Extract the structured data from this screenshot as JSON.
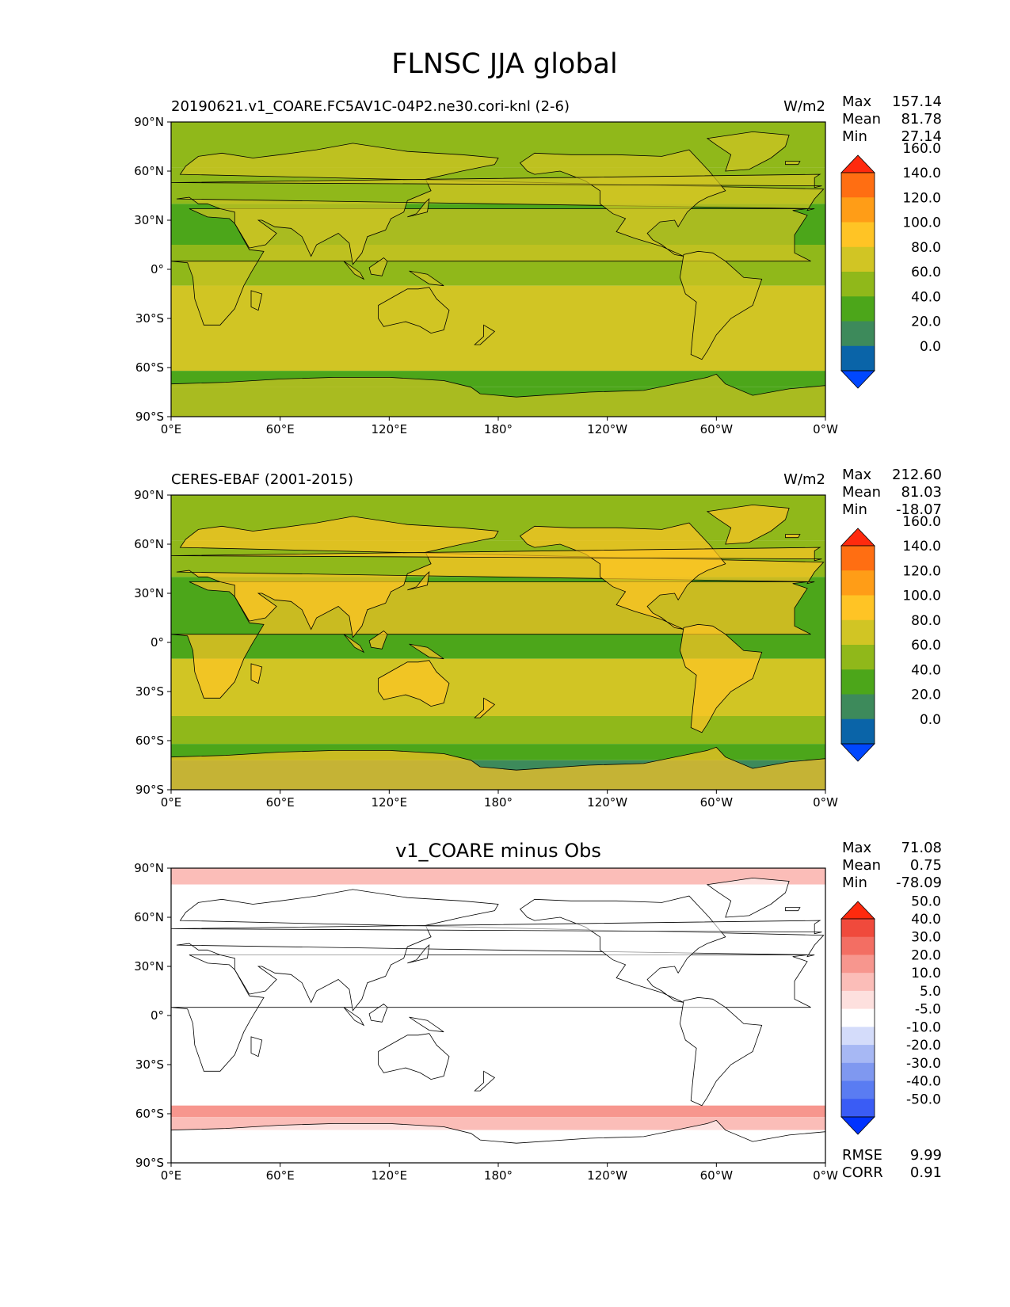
{
  "figure": {
    "title": "FLNSC JJA global",
    "colors": {
      "land": "#ffffff",
      "coast": "#000000"
    }
  },
  "panels": [
    {
      "id": "test",
      "left_title": "20190621.v1_COARE.FC5AV1C-04P2.ne30.cori-knl (2-6)",
      "center_title": "",
      "units": "W/m2",
      "stats": [
        {
          "label": "Max",
          "value": "157.14"
        },
        {
          "label": "Mean",
          "value": "81.78"
        },
        {
          "label": "Min",
          "value": "27.14"
        }
      ],
      "extra_stats": []
    },
    {
      "id": "reference",
      "left_title": "CERES-EBAF (2001-2015)",
      "center_title": "",
      "units": "W/m2",
      "stats": [
        {
          "label": "Max",
          "value": "212.60"
        },
        {
          "label": "Mean",
          "value": "81.03"
        },
        {
          "label": "Min",
          "value": "-18.07"
        }
      ],
      "extra_stats": []
    },
    {
      "id": "diff",
      "left_title": "",
      "center_title": "v1_COARE minus Obs",
      "units": "",
      "stats": [
        {
          "label": "Max",
          "value": "71.08"
        },
        {
          "label": "Mean",
          "value": "0.75"
        },
        {
          "label": "Min",
          "value": "-78.09"
        }
      ],
      "extra_stats": [
        {
          "label": "RMSE",
          "value": "9.99"
        },
        {
          "label": "CORR",
          "value": "0.91"
        }
      ]
    }
  ],
  "chart_data": [
    {
      "type": "heatmap",
      "title": "20190621.v1_COARE.FC5AV1C-04P2.ne30.cori-knl (2-6)",
      "units": "W/m2",
      "x_ticks": [
        "0°E",
        "60°E",
        "120°E",
        "180°",
        "120°W",
        "60°W",
        "0°W"
      ],
      "y_ticks": [
        "90°N",
        "60°N",
        "30°N",
        "0°",
        "30°S",
        "60°S",
        "90°S"
      ],
      "lon_range": [
        0,
        360
      ],
      "lat_range": [
        -90,
        90
      ],
      "colorbar": {
        "levels": [
          "0.0",
          "20.0",
          "40.0",
          "60.0",
          "80.0",
          "100.0",
          "120.0",
          "140.0",
          "160.0"
        ],
        "colors": [
          "#0047ff",
          "#0a64a8",
          "#3d8a5b",
          "#4ca61a",
          "#90b81a",
          "#d1c524",
          "#ffc425",
          "#ff9d17",
          "#ff6e12",
          "#ff2a0e"
        ],
        "extend": "both"
      },
      "stats": {
        "max": 157.14,
        "mean": 81.78,
        "min": 27.14
      }
    },
    {
      "type": "heatmap",
      "title": "CERES-EBAF (2001-2015)",
      "units": "W/m2",
      "x_ticks": [
        "0°E",
        "60°E",
        "120°E",
        "180°",
        "120°W",
        "60°W",
        "0°W"
      ],
      "y_ticks": [
        "90°N",
        "60°N",
        "30°N",
        "0°",
        "30°S",
        "60°S",
        "90°S"
      ],
      "lon_range": [
        0,
        360
      ],
      "lat_range": [
        -90,
        90
      ],
      "colorbar": {
        "levels": [
          "0.0",
          "20.0",
          "40.0",
          "60.0",
          "80.0",
          "100.0",
          "120.0",
          "140.0",
          "160.0"
        ],
        "colors": [
          "#0047ff",
          "#0a64a8",
          "#3d8a5b",
          "#4ca61a",
          "#90b81a",
          "#d1c524",
          "#ffc425",
          "#ff9d17",
          "#ff6e12",
          "#ff2a0e"
        ],
        "extend": "both"
      },
      "stats": {
        "max": 212.6,
        "mean": 81.03,
        "min": -18.07
      }
    },
    {
      "type": "heatmap",
      "title": "v1_COARE minus Obs",
      "x_ticks": [
        "0°E",
        "60°E",
        "120°E",
        "180°",
        "120°W",
        "60°W",
        "0°W"
      ],
      "y_ticks": [
        "90°N",
        "60°N",
        "30°N",
        "0°",
        "30°S",
        "60°S",
        "90°S"
      ],
      "lon_range": [
        0,
        360
      ],
      "lat_range": [
        -90,
        90
      ],
      "colorbar": {
        "levels": [
          "-50.0",
          "-40.0",
          "-30.0",
          "-20.0",
          "-10.0",
          "-5.0",
          "5.0",
          "10.0",
          "20.0",
          "30.0",
          "40.0",
          "50.0"
        ],
        "colors": [
          "#0033ff",
          "#3a5cf5",
          "#5a7cf2",
          "#7f98f0",
          "#a7b8f4",
          "#d4dcfa",
          "#ffffff",
          "#fde0de",
          "#fbbdb8",
          "#f7968e",
          "#f36e63",
          "#f04a3c",
          "#ff2a0e"
        ],
        "extend": "both"
      },
      "stats": {
        "max": 71.08,
        "mean": 0.75,
        "min": -78.09,
        "rmse": 9.99,
        "corr": 0.91
      }
    }
  ]
}
